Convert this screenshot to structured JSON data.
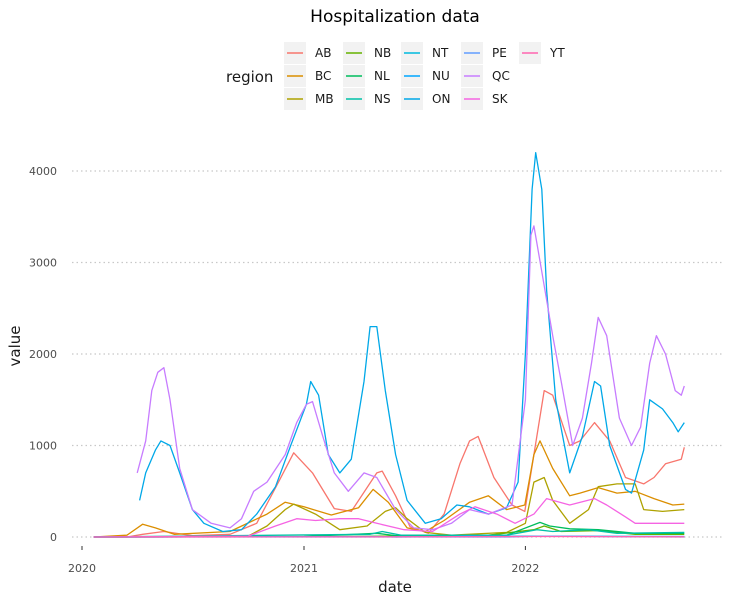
{
  "chart_data": {
    "type": "line",
    "title": "Hospitalization data",
    "xlabel": "date",
    "ylabel": "value",
    "x_ticks": [
      "2020",
      "2021",
      "2022"
    ],
    "y_ticks": [
      "0",
      "1000",
      "2000",
      "3000",
      "4000"
    ],
    "xlim": [
      "2020-01-01",
      "2022-10-01"
    ],
    "ylim": [
      0,
      4300
    ],
    "grid": "horizontal dotted",
    "legend": {
      "title": "region",
      "placement": "top"
    },
    "series": [
      {
        "name": "AB",
        "color": "#F8766D",
        "points": [
          [
            "2020-01-20",
            0
          ],
          [
            "2020-03-15",
            0
          ],
          [
            "2020-04-10",
            30
          ],
          [
            "2020-05-15",
            60
          ],
          [
            "2020-07-01",
            15
          ],
          [
            "2020-09-01",
            30
          ],
          [
            "2020-10-15",
            150
          ],
          [
            "2020-11-20",
            600
          ],
          [
            "2020-12-15",
            920
          ],
          [
            "2021-01-15",
            700
          ],
          [
            "2021-02-20",
            310
          ],
          [
            "2021-03-20",
            280
          ],
          [
            "2021-05-01",
            700
          ],
          [
            "2021-05-10",
            720
          ],
          [
            "2021-06-01",
            450
          ],
          [
            "2021-06-25",
            110
          ],
          [
            "2021-07-25",
            40
          ],
          [
            "2021-08-20",
            250
          ],
          [
            "2021-09-15",
            800
          ],
          [
            "2021-10-01",
            1050
          ],
          [
            "2021-10-15",
            1100
          ],
          [
            "2021-11-10",
            650
          ],
          [
            "2021-12-10",
            350
          ],
          [
            "2021-12-31",
            280
          ],
          [
            "2022-01-15",
            900
          ],
          [
            "2022-02-01",
            1600
          ],
          [
            "2022-02-15",
            1550
          ],
          [
            "2022-03-15",
            1000
          ],
          [
            "2022-04-01",
            1050
          ],
          [
            "2022-04-25",
            1250
          ],
          [
            "2022-05-20",
            1050
          ],
          [
            "2022-06-15",
            650
          ],
          [
            "2022-07-15",
            580
          ],
          [
            "2022-08-01",
            650
          ],
          [
            "2022-08-20",
            800
          ],
          [
            "2022-09-15",
            850
          ],
          [
            "2022-09-20",
            980
          ]
        ]
      },
      {
        "name": "BC",
        "color": "#DB8E00",
        "points": [
          [
            "2020-01-20",
            0
          ],
          [
            "2020-03-15",
            20
          ],
          [
            "2020-04-10",
            140
          ],
          [
            "2020-05-01",
            100
          ],
          [
            "2020-06-01",
            30
          ],
          [
            "2020-09-01",
            60
          ],
          [
            "2020-11-01",
            250
          ],
          [
            "2020-12-01",
            380
          ],
          [
            "2021-01-01",
            330
          ],
          [
            "2021-02-15",
            240
          ],
          [
            "2021-04-01",
            320
          ],
          [
            "2021-04-25",
            520
          ],
          [
            "2021-05-20",
            380
          ],
          [
            "2021-06-20",
            100
          ],
          [
            "2021-07-20",
            60
          ],
          [
            "2021-08-20",
            180
          ],
          [
            "2021-10-01",
            380
          ],
          [
            "2021-11-01",
            450
          ],
          [
            "2021-12-01",
            300
          ],
          [
            "2021-12-31",
            350
          ],
          [
            "2022-01-15",
            900
          ],
          [
            "2022-01-25",
            1050
          ],
          [
            "2022-02-15",
            750
          ],
          [
            "2022-03-15",
            450
          ],
          [
            "2022-04-01",
            480
          ],
          [
            "2022-05-01",
            540
          ],
          [
            "2022-06-01",
            480
          ],
          [
            "2022-07-01",
            500
          ],
          [
            "2022-08-01",
            420
          ],
          [
            "2022-09-01",
            350
          ],
          [
            "2022-09-20",
            360
          ]
        ]
      },
      {
        "name": "MB",
        "color": "#AEA200",
        "points": [
          [
            "2020-01-20",
            0
          ],
          [
            "2020-10-01",
            10
          ],
          [
            "2020-11-01",
            120
          ],
          [
            "2020-12-01",
            300
          ],
          [
            "2020-12-15",
            360
          ],
          [
            "2021-01-20",
            250
          ],
          [
            "2021-03-01",
            80
          ],
          [
            "2021-04-15",
            120
          ],
          [
            "2021-05-15",
            280
          ],
          [
            "2021-06-01",
            320
          ],
          [
            "2021-06-20",
            200
          ],
          [
            "2021-07-20",
            50
          ],
          [
            "2021-09-01",
            20
          ],
          [
            "2021-12-01",
            50
          ],
          [
            "2022-01-01",
            150
          ],
          [
            "2022-01-15",
            600
          ],
          [
            "2022-02-01",
            650
          ],
          [
            "2022-02-15",
            400
          ],
          [
            "2022-03-15",
            150
          ],
          [
            "2022-04-15",
            300
          ],
          [
            "2022-05-01",
            550
          ],
          [
            "2022-06-01",
            580
          ],
          [
            "2022-07-01",
            580
          ],
          [
            "2022-07-15",
            300
          ],
          [
            "2022-08-15",
            280
          ],
          [
            "2022-09-20",
            300
          ]
        ]
      },
      {
        "name": "NB",
        "color": "#64B200",
        "points": [
          [
            "2020-01-20",
            0
          ],
          [
            "2021-03-01",
            5
          ],
          [
            "2021-11-01",
            20
          ],
          [
            "2022-01-15",
            80
          ],
          [
            "2022-02-01",
            120
          ],
          [
            "2022-03-01",
            60
          ],
          [
            "2022-05-01",
            70
          ],
          [
            "2022-07-01",
            30
          ],
          [
            "2022-09-20",
            30
          ]
        ]
      },
      {
        "name": "NL",
        "color": "#00BD5C",
        "points": [
          [
            "2020-01-20",
            0
          ],
          [
            "2021-01-01",
            5
          ],
          [
            "2021-05-01",
            40
          ],
          [
            "2021-06-01",
            15
          ],
          [
            "2021-12-01",
            20
          ],
          [
            "2022-01-25",
            160
          ],
          [
            "2022-02-10",
            120
          ],
          [
            "2022-03-15",
            90
          ],
          [
            "2022-05-01",
            80
          ],
          [
            "2022-07-01",
            40
          ],
          [
            "2022-09-20",
            40
          ]
        ]
      },
      {
        "name": "NS",
        "color": "#00C1A7",
        "points": [
          [
            "2020-01-20",
            0
          ],
          [
            "2021-04-20",
            30
          ],
          [
            "2021-05-10",
            60
          ],
          [
            "2021-06-10",
            20
          ],
          [
            "2021-12-01",
            20
          ],
          [
            "2022-01-20",
            80
          ],
          [
            "2022-02-15",
            60
          ],
          [
            "2022-04-15",
            80
          ],
          [
            "2022-06-01",
            40
          ],
          [
            "2022-09-20",
            50
          ]
        ]
      },
      {
        "name": "NT",
        "color": "#00BADE",
        "points": [
          [
            "2020-01-20",
            0
          ],
          [
            "2021-09-01",
            5
          ],
          [
            "2021-10-01",
            15
          ],
          [
            "2021-11-01",
            5
          ],
          [
            "2022-02-01",
            10
          ],
          [
            "2022-09-20",
            5
          ]
        ]
      },
      {
        "name": "NU",
        "color": "#00A6FF",
        "points": [
          [
            "2020-01-20",
            0
          ],
          [
            "2021-05-01",
            5
          ],
          [
            "2021-06-01",
            0
          ],
          [
            "2022-01-15",
            10
          ],
          [
            "2022-09-20",
            0
          ]
        ]
      },
      {
        "name": "ON",
        "color": "#00A8E8",
        "points": [
          [
            "2020-04-05",
            400
          ],
          [
            "2020-04-15",
            700
          ],
          [
            "2020-05-01",
            950
          ],
          [
            "2020-05-10",
            1050
          ],
          [
            "2020-05-25",
            1000
          ],
          [
            "2020-06-10",
            700
          ],
          [
            "2020-07-01",
            300
          ],
          [
            "2020-07-20",
            150
          ],
          [
            "2020-08-20",
            60
          ],
          [
            "2020-09-20",
            80
          ],
          [
            "2020-10-15",
            250
          ],
          [
            "2020-11-15",
            550
          ],
          [
            "2020-12-10",
            1000
          ],
          [
            "2021-01-05",
            1450
          ],
          [
            "2021-01-12",
            1700
          ],
          [
            "2021-01-25",
            1550
          ],
          [
            "2021-02-10",
            900
          ],
          [
            "2021-03-01",
            700
          ],
          [
            "2021-03-20",
            850
          ],
          [
            "2021-04-10",
            1700
          ],
          [
            "2021-04-20",
            2300
          ],
          [
            "2021-05-01",
            2300
          ],
          [
            "2021-05-15",
            1600
          ],
          [
            "2021-06-01",
            900
          ],
          [
            "2021-06-20",
            400
          ],
          [
            "2021-07-20",
            150
          ],
          [
            "2021-08-15",
            200
          ],
          [
            "2021-09-10",
            350
          ],
          [
            "2021-10-01",
            330
          ],
          [
            "2021-11-01",
            250
          ],
          [
            "2021-12-01",
            320
          ],
          [
            "2021-12-20",
            600
          ],
          [
            "2022-01-01",
            2000
          ],
          [
            "2022-01-12",
            3800
          ],
          [
            "2022-01-18",
            4200
          ],
          [
            "2022-01-28",
            3800
          ],
          [
            "2022-02-05",
            2700
          ],
          [
            "2022-02-20",
            1500
          ],
          [
            "2022-03-15",
            700
          ],
          [
            "2022-04-05",
            1100
          ],
          [
            "2022-04-25",
            1700
          ],
          [
            "2022-05-05",
            1650
          ],
          [
            "2022-05-20",
            1000
          ],
          [
            "2022-06-15",
            520
          ],
          [
            "2022-06-25",
            480
          ],
          [
            "2022-07-15",
            950
          ],
          [
            "2022-07-25",
            1500
          ],
          [
            "2022-08-15",
            1400
          ],
          [
            "2022-09-01",
            1250
          ],
          [
            "2022-09-10",
            1150
          ],
          [
            "2022-09-20",
            1250
          ]
        ]
      },
      {
        "name": "PE",
        "color": "#619CFF",
        "points": [
          [
            "2020-01-20",
            0
          ],
          [
            "2021-12-01",
            0
          ],
          [
            "2022-02-01",
            10
          ],
          [
            "2022-06-01",
            5
          ],
          [
            "2022-09-20",
            5
          ]
        ]
      },
      {
        "name": "QC",
        "color": "#C77CFF",
        "points": [
          [
            "2020-04-01",
            700
          ],
          [
            "2020-04-15",
            1050
          ],
          [
            "2020-04-25",
            1600
          ],
          [
            "2020-05-05",
            1800
          ],
          [
            "2020-05-15",
            1850
          ],
          [
            "2020-05-25",
            1500
          ],
          [
            "2020-06-10",
            750
          ],
          [
            "2020-07-01",
            300
          ],
          [
            "2020-08-01",
            150
          ],
          [
            "2020-09-01",
            100
          ],
          [
            "2020-09-20",
            200
          ],
          [
            "2020-10-10",
            500
          ],
          [
            "2020-11-01",
            600
          ],
          [
            "2020-12-01",
            900
          ],
          [
            "2020-12-20",
            1250
          ],
          [
            "2021-01-05",
            1450
          ],
          [
            "2021-01-15",
            1480
          ],
          [
            "2021-02-01",
            1100
          ],
          [
            "2021-02-20",
            700
          ],
          [
            "2021-03-15",
            500
          ],
          [
            "2021-04-10",
            700
          ],
          [
            "2021-05-01",
            650
          ],
          [
            "2021-06-01",
            300
          ],
          [
            "2021-07-01",
            100
          ],
          [
            "2021-08-01",
            80
          ],
          [
            "2021-09-01",
            150
          ],
          [
            "2021-10-01",
            300
          ],
          [
            "2021-11-01",
            250
          ],
          [
            "2021-12-10",
            350
          ],
          [
            "2022-01-01",
            1500
          ],
          [
            "2022-01-10",
            3300
          ],
          [
            "2022-01-15",
            3400
          ],
          [
            "2022-01-28",
            2900
          ],
          [
            "2022-02-15",
            2200
          ],
          [
            "2022-03-01",
            1700
          ],
          [
            "2022-03-20",
            1000
          ],
          [
            "2022-04-05",
            1300
          ],
          [
            "2022-04-20",
            1900
          ],
          [
            "2022-05-01",
            2400
          ],
          [
            "2022-05-15",
            2200
          ],
          [
            "2022-06-05",
            1300
          ],
          [
            "2022-06-25",
            1000
          ],
          [
            "2022-07-10",
            1200
          ],
          [
            "2022-07-25",
            1900
          ],
          [
            "2022-08-05",
            2200
          ],
          [
            "2022-08-20",
            2000
          ],
          [
            "2022-09-05",
            1600
          ],
          [
            "2022-09-15",
            1550
          ],
          [
            "2022-09-20",
            1650
          ]
        ]
      },
      {
        "name": "SK",
        "color": "#F564E3",
        "points": [
          [
            "2020-01-20",
            0
          ],
          [
            "2020-10-01",
            10
          ],
          [
            "2020-11-15",
            120
          ],
          [
            "2020-12-20",
            200
          ],
          [
            "2021-01-20",
            180
          ],
          [
            "2021-03-01",
            200
          ],
          [
            "2021-04-01",
            200
          ],
          [
            "2021-05-01",
            150
          ],
          [
            "2021-06-15",
            80
          ],
          [
            "2021-08-01",
            60
          ],
          [
            "2021-09-15",
            250
          ],
          [
            "2021-10-10",
            330
          ],
          [
            "2021-11-15",
            250
          ],
          [
            "2021-12-15",
            150
          ],
          [
            "2022-01-15",
            250
          ],
          [
            "2022-02-05",
            420
          ],
          [
            "2022-03-15",
            350
          ],
          [
            "2022-04-25",
            420
          ],
          [
            "2022-05-15",
            350
          ],
          [
            "2022-06-15",
            220
          ],
          [
            "2022-07-01",
            150
          ],
          [
            "2022-09-20",
            150
          ]
        ]
      },
      {
        "name": "YT",
        "color": "#FF64B0",
        "points": [
          [
            "2020-01-20",
            0
          ],
          [
            "2021-06-01",
            2
          ],
          [
            "2022-01-15",
            5
          ],
          [
            "2022-09-20",
            2
          ]
        ]
      }
    ]
  }
}
